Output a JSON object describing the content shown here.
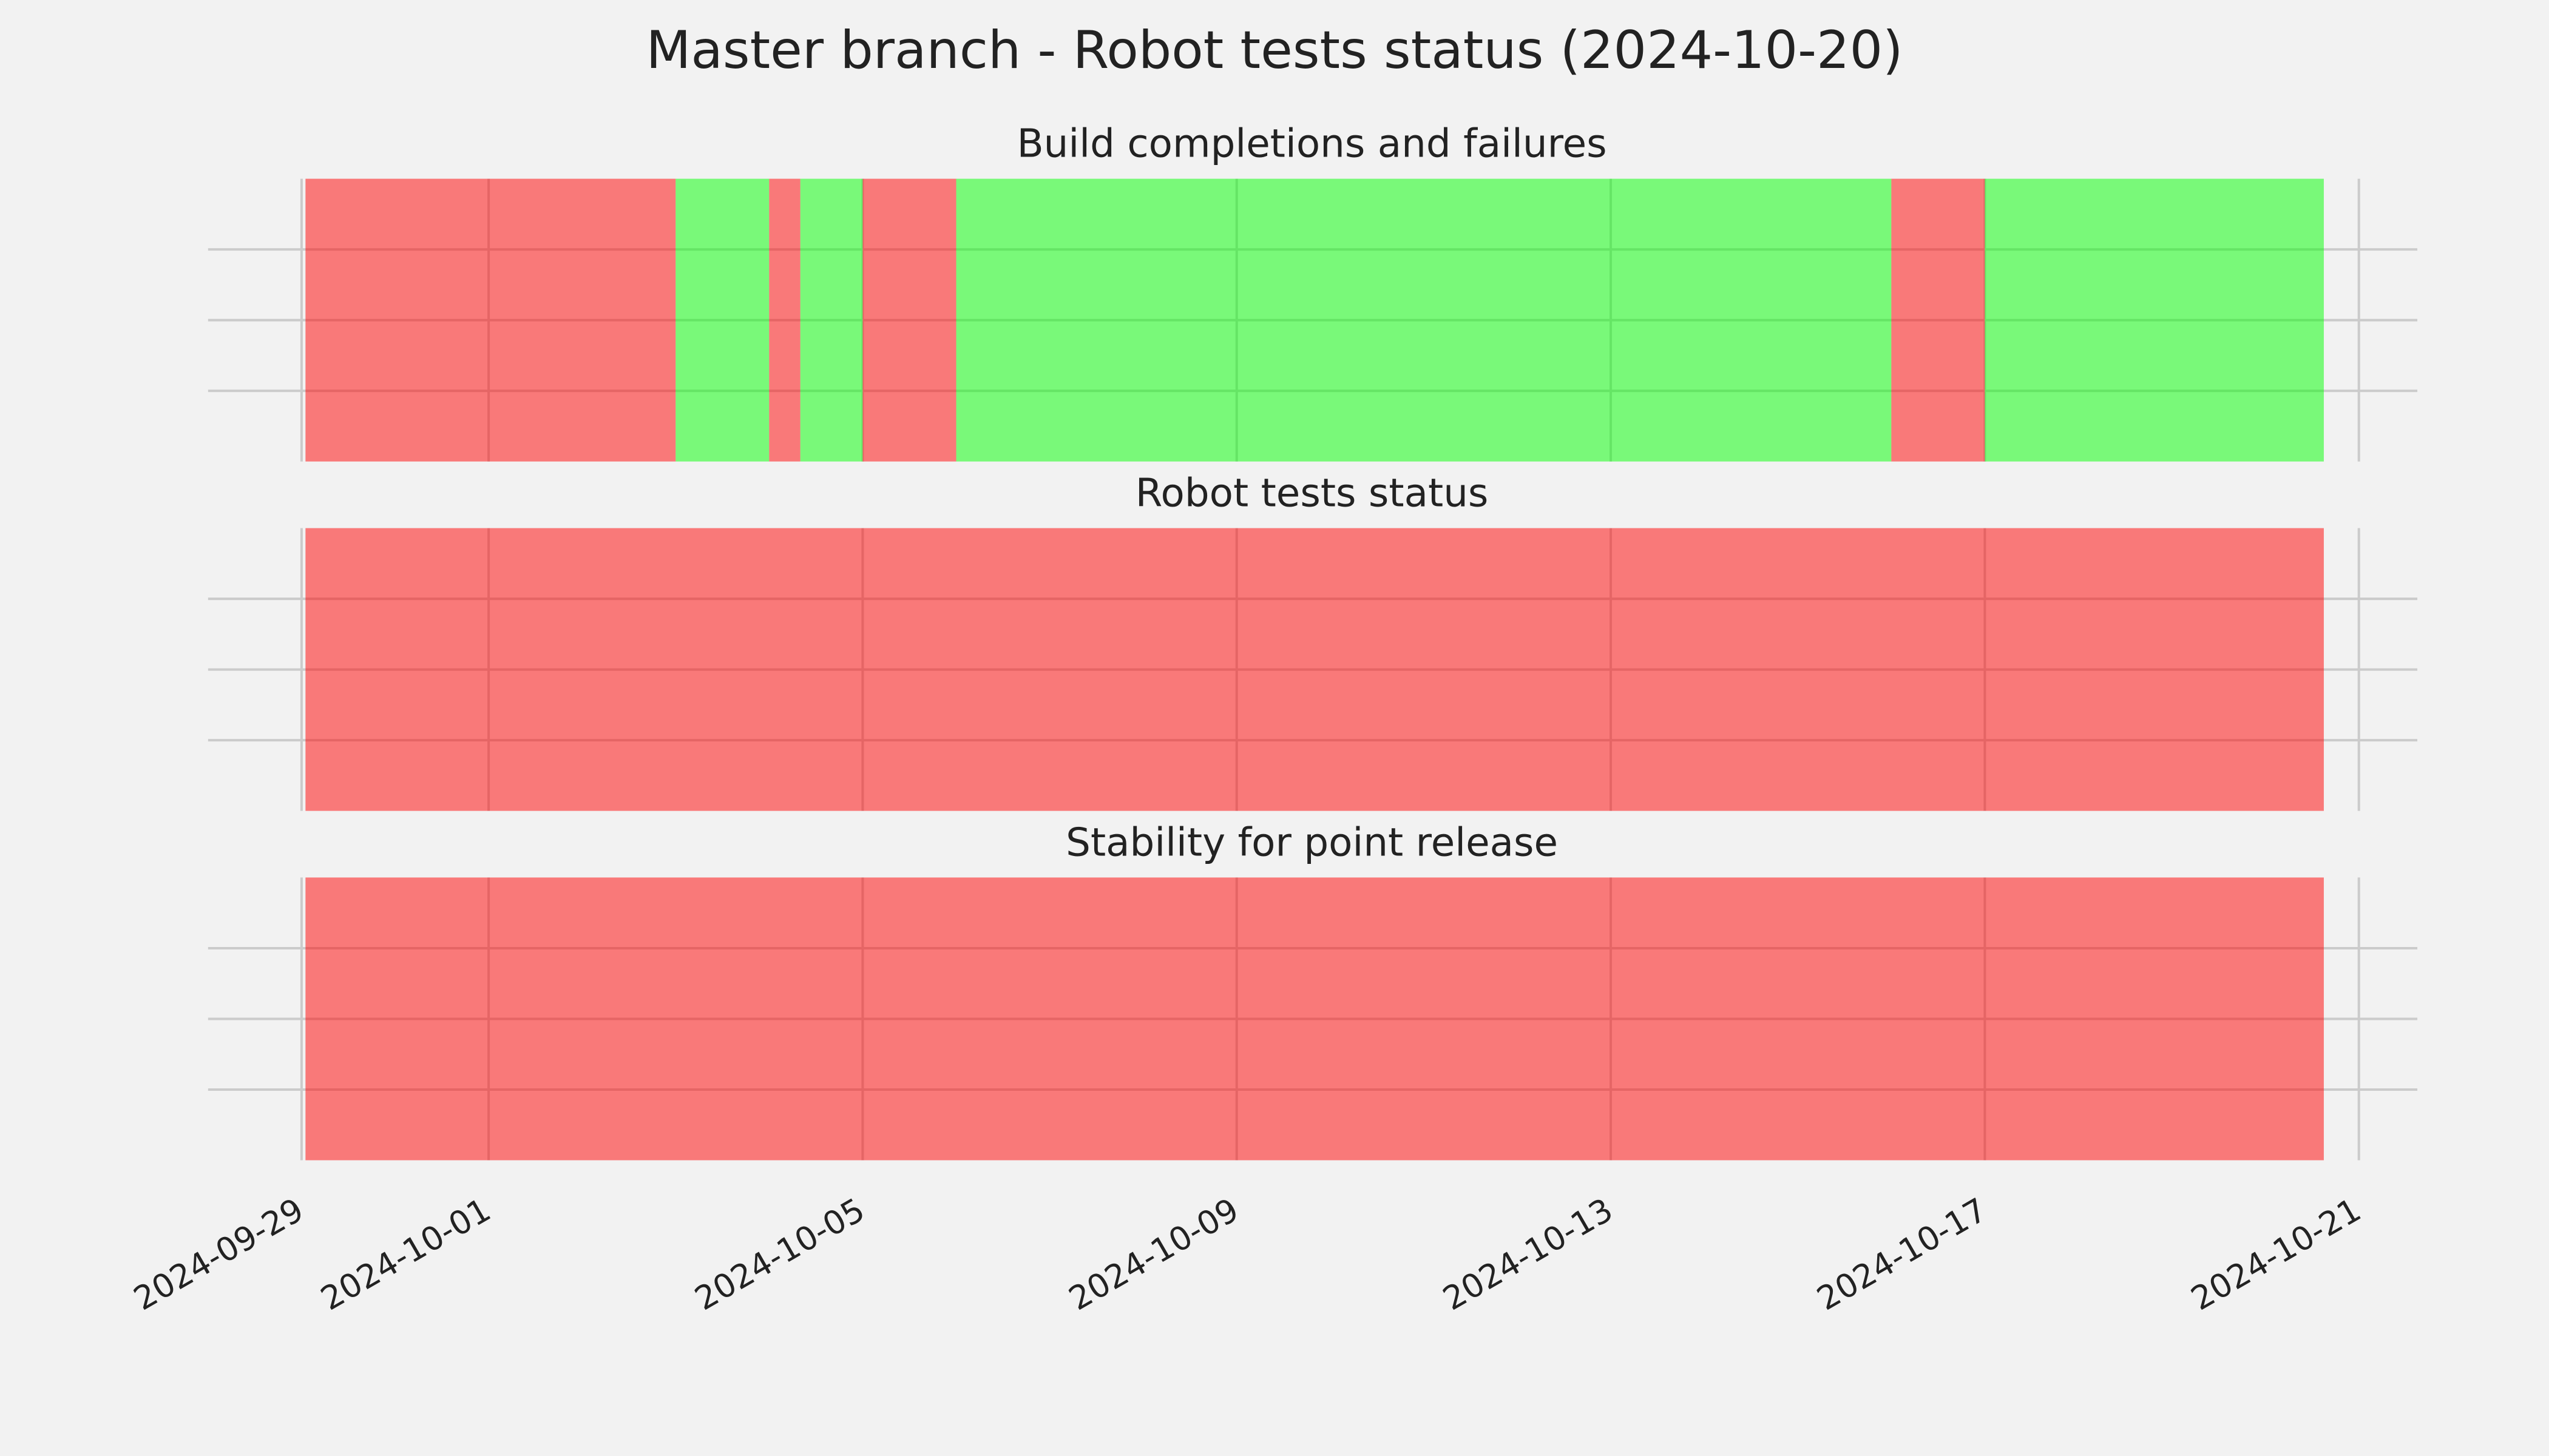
{
  "title": "Master branch - Robot tests status (2024-10-20)",
  "chart_data": [
    {
      "type": "span",
      "title": "Build completions and failures",
      "x": [
        "2024-09-29T01:00",
        "2024-10-03T00:00",
        "2024-10-04T00:00",
        "2024-10-04T08:00",
        "2024-10-05T00:00",
        "2024-10-06T00:00",
        "2024-10-16T00:00",
        "2024-10-17T00:00",
        "2024-10-20T15:00"
      ],
      "colors": [
        "#ff0000",
        "#00ff00",
        "#ff0000",
        "#00ff00",
        "#ff0000",
        "#00ff00",
        "#ff0000",
        "#00ff00"
      ],
      "xlim": [
        "2024-09-28T00:00",
        "2024-10-21T15:00"
      ],
      "xticks": [
        "2024-09-29",
        "2024-10-01",
        "2024-10-05",
        "2024-10-09",
        "2024-10-13",
        "2024-10-17",
        "2024-10-21"
      ],
      "ylim": [
        0,
        1
      ],
      "yticks": [
        0.25,
        0.5,
        0.75
      ],
      "grid": true
    },
    {
      "type": "span",
      "title": "Robot tests status",
      "x": [
        "2024-09-29T01:00",
        "2024-10-20T15:00"
      ],
      "colors": [
        "#ff0000"
      ],
      "xlim": [
        "2024-09-28T00:00",
        "2024-10-21T15:00"
      ],
      "xticks": [
        "2024-09-29",
        "2024-10-01",
        "2024-10-05",
        "2024-10-09",
        "2024-10-13",
        "2024-10-17",
        "2024-10-21"
      ],
      "ylim": [
        0,
        1
      ],
      "yticks": [
        0.25,
        0.5,
        0.75
      ],
      "grid": true
    },
    {
      "type": "span",
      "title": "Stability for point release",
      "x": [
        "2024-09-29T01:00",
        "2024-10-20T15:00"
      ],
      "colors": [
        "#ff0000"
      ],
      "xlim": [
        "2024-09-28T00:00",
        "2024-10-21T15:00"
      ],
      "xticks": [
        "2024-09-29",
        "2024-10-01",
        "2024-10-05",
        "2024-10-09",
        "2024-10-13",
        "2024-10-17",
        "2024-10-21"
      ],
      "ylim": [
        0,
        1
      ],
      "yticks": [
        0.25,
        0.5,
        0.75
      ],
      "grid": true
    }
  ]
}
